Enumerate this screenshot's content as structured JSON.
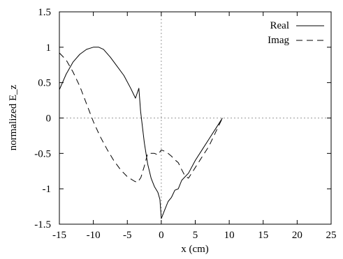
{
  "chart_data": {
    "type": "line",
    "xlabel": "x (cm)",
    "ylabel": "normalized E_z",
    "xlim": [
      -15,
      25
    ],
    "ylim": [
      -1.5,
      1.5
    ],
    "x_ticks": [
      -15,
      -10,
      -5,
      0,
      5,
      10,
      15,
      20,
      25
    ],
    "y_ticks": [
      -1.5,
      -1,
      -0.5,
      0,
      0.5,
      1,
      1.5
    ],
    "x_tick_labels": [
      "-15",
      "-10",
      "-5",
      "0",
      "5",
      "10",
      "15",
      "20",
      "25"
    ],
    "y_tick_labels": [
      "-1.5",
      "-1",
      "-0.5",
      "0",
      "0.5",
      "1",
      "1.5"
    ],
    "zero_lines": true,
    "grid": false,
    "legend_position": "top-right",
    "series": [
      {
        "name": "Real",
        "style": "solid",
        "color": "#000000",
        "x": [
          -15,
          -14,
          -13,
          -12,
          -11,
          -10,
          -9.2,
          -8.5,
          -7.5,
          -6.5,
          -5.5,
          -4.5,
          -3.8,
          -3.3,
          -3.05,
          -2.8,
          -2.5,
          -2,
          -1.5,
          -1,
          -0.5,
          -0.2,
          0,
          0.5,
          1,
          1.5,
          2,
          2.5,
          3,
          3.5,
          4,
          5,
          6,
          7,
          8,
          9
        ],
        "y": [
          0.4,
          0.62,
          0.79,
          0.9,
          0.97,
          1.0,
          1.0,
          0.97,
          0.86,
          0.73,
          0.6,
          0.42,
          0.28,
          0.42,
          0.1,
          -0.1,
          -0.35,
          -0.65,
          -0.85,
          -0.97,
          -1.05,
          -1.15,
          -1.42,
          -1.3,
          -1.18,
          -1.12,
          -1.02,
          -1.0,
          -0.88,
          -0.83,
          -0.78,
          -0.6,
          -0.45,
          -0.3,
          -0.15,
          0.0
        ]
      },
      {
        "name": "Imag",
        "style": "dashed",
        "color": "#000000",
        "x": [
          -15,
          -14,
          -13,
          -12,
          -11,
          -10,
          -9,
          -8,
          -7,
          -6,
          -5,
          -4,
          -3.5,
          -3,
          -2.5,
          -2,
          -1.5,
          -1,
          -0.5,
          0,
          0.5,
          1,
          1.5,
          2,
          2.5,
          3,
          3.5,
          4,
          5,
          6,
          7,
          8,
          9
        ],
        "y": [
          0.92,
          0.82,
          0.65,
          0.45,
          0.2,
          -0.05,
          -0.26,
          -0.44,
          -0.6,
          -0.73,
          -0.83,
          -0.89,
          -0.91,
          -0.84,
          -0.68,
          -0.5,
          -0.5,
          -0.5,
          -0.52,
          -0.45,
          -0.47,
          -0.5,
          -0.54,
          -0.59,
          -0.63,
          -0.73,
          -0.82,
          -0.85,
          -0.7,
          -0.55,
          -0.4,
          -0.2,
          0.0
        ]
      }
    ]
  }
}
